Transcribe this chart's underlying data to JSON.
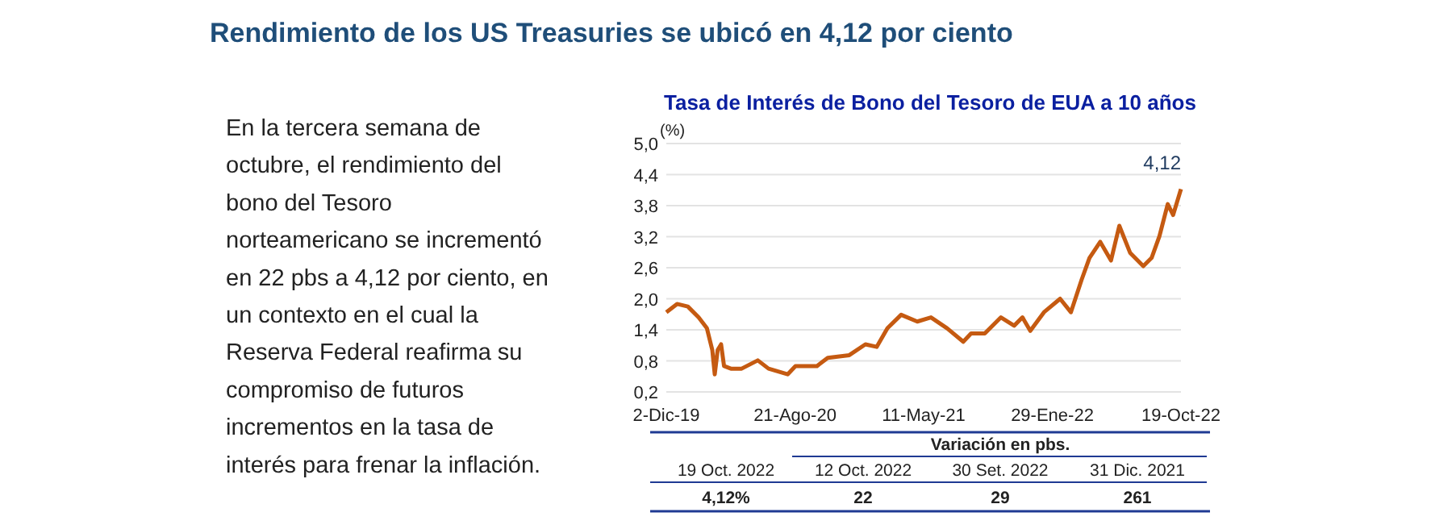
{
  "chart_data": {
    "type": "line",
    "title": "Rendimiento de los US Treasuries se ubicó en 4,12 por ciento",
    "subtitle": "Tasa de Interés de Bono del Tesoro de EUA a 10 años",
    "ylabel": "(%)",
    "x": [
      "2019-12-02",
      "2019-12-24",
      "2020-01-15",
      "2020-02-06",
      "2020-02-23",
      "2020-03-05",
      "2020-03-10",
      "2020-03-16",
      "2020-03-23",
      "2020-03-29",
      "2020-04-12",
      "2020-05-04",
      "2020-06-06",
      "2020-06-28",
      "2020-08-06",
      "2020-08-22",
      "2020-10-05",
      "2020-10-27",
      "2020-12-10",
      "2021-01-12",
      "2021-02-04",
      "2021-02-26",
      "2021-03-26",
      "2021-04-28",
      "2021-05-26",
      "2021-06-28",
      "2021-07-31",
      "2021-08-16",
      "2021-09-13",
      "2021-10-16",
      "2021-11-12",
      "2021-11-29",
      "2021-12-15",
      "2022-01-12",
      "2022-02-14",
      "2022-03-08",
      "2022-03-30",
      "2022-04-15",
      "2022-05-07",
      "2022-05-29",
      "2022-06-15",
      "2022-07-07",
      "2022-08-03",
      "2022-08-20",
      "2022-09-05",
      "2022-09-22",
      "2022-10-03",
      "2022-10-19"
    ],
    "series": [
      {
        "color": "#c55a11",
        "values": [
          1.74,
          1.9,
          1.85,
          1.64,
          1.43,
          1.01,
          0.54,
          1.01,
          1.12,
          0.7,
          0.65,
          0.65,
          0.81,
          0.65,
          0.54,
          0.7,
          0.7,
          0.86,
          0.91,
          1.12,
          1.07,
          1.43,
          1.69,
          1.56,
          1.64,
          1.43,
          1.17,
          1.33,
          1.33,
          1.64,
          1.48,
          1.64,
          1.38,
          1.74,
          2.0,
          1.74,
          2.37,
          2.79,
          3.1,
          2.74,
          3.41,
          2.89,
          2.63,
          2.79,
          3.21,
          3.83,
          3.62,
          4.12
        ]
      }
    ],
    "xlim": [
      "2019-12-02",
      "2022-10-19"
    ],
    "xticks": [
      {
        "value": "2019-12-02",
        "label": "2-Dic-19"
      },
      {
        "value": "2020-08-21",
        "label": "21-Ago-20"
      },
      {
        "value": "2021-05-11",
        "label": "11-May-21"
      },
      {
        "value": "2022-01-29",
        "label": "29-Ene-22"
      },
      {
        "value": "2022-10-19",
        "label": "19-Oct-22"
      }
    ],
    "ylim": [
      0.2,
      5.0
    ],
    "yticks": [
      {
        "value": 0.2,
        "label": "0,2"
      },
      {
        "value": 0.8,
        "label": "0,8"
      },
      {
        "value": 1.4,
        "label": "1,4"
      },
      {
        "value": 2.0,
        "label": "2,0"
      },
      {
        "value": 2.6,
        "label": "2,6"
      },
      {
        "value": 3.2,
        "label": "3,2"
      },
      {
        "value": 3.8,
        "label": "3,8"
      },
      {
        "value": 4.4,
        "label": "4,4"
      },
      {
        "value": 5.0,
        "label": "5,0"
      }
    ],
    "grid": "y",
    "marker": "none",
    "line_style": "solid",
    "annotations": [
      {
        "text": "4,12",
        "x": "2022-10-19",
        "y": 4.12
      },
      "En la tercera semana de\noctubre, el rendimiento del\nbono del Tesoro\nnorteamericano se incrementó\nen 22 pbs a 4,12 por ciento, en\nun contexto en el cual la\nReserva Federal reafirma su\ncompromiso de futuros\nincrementos en la tasa de\ninterés para frenar la inflación.",
      "Variación en pbs.",
      "19 Oct. 2022",
      "12 Oct. 2022",
      "30 Set. 2022",
      "31 Dic. 2021",
      "4,12%",
      "22",
      "29",
      "261"
    ]
  }
}
